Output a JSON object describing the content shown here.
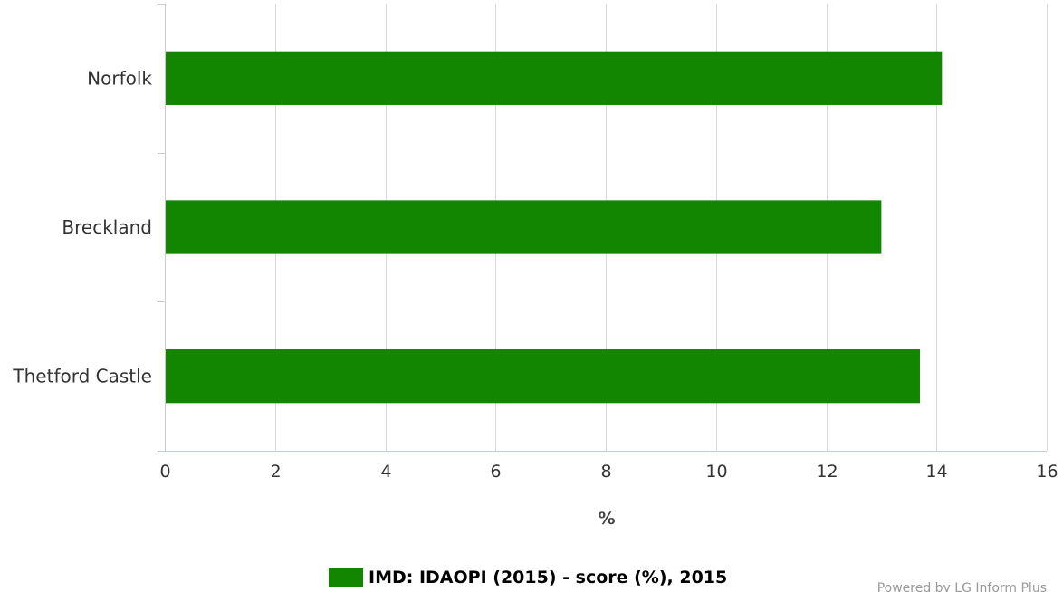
{
  "chart_data": {
    "type": "bar",
    "orientation": "horizontal",
    "categories": [
      "Norfolk",
      "Breckland",
      "Thetford Castle"
    ],
    "series": [
      {
        "name": "IMD: IDAOPI (2015) - score (%), 2015",
        "values": [
          14.1,
          13.0,
          13.7
        ],
        "color": "#138600"
      }
    ],
    "xlabel": "%",
    "xlim": [
      0,
      16
    ],
    "xticks": [
      "0",
      "2",
      "4",
      "6",
      "8",
      "10",
      "12",
      "14",
      "16"
    ],
    "grid": true,
    "legend": "bottom-center"
  },
  "credits": "Powered by LG Inform Plus",
  "colors": {
    "gridline": "#d8d8d8",
    "axis": "#c0d0e0",
    "text": "#333333"
  }
}
